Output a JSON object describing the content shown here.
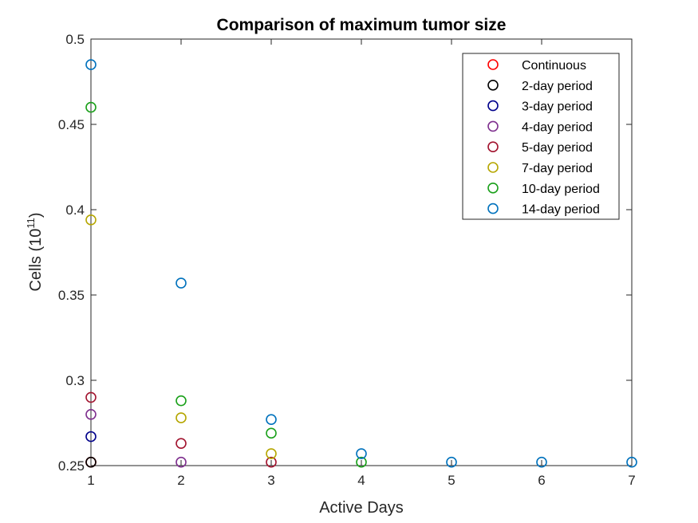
{
  "chart_data": {
    "type": "scatter",
    "title": "Comparison of maximum tumor size",
    "xlabel": "Active Days",
    "ylabel": {
      "base": "Cells (10",
      "superscript": "11",
      "suffix": ")"
    },
    "xlim": [
      1,
      7
    ],
    "ylim": [
      0.25,
      0.5
    ],
    "xticks": [
      "1",
      "2",
      "3",
      "4",
      "5",
      "6",
      "7"
    ],
    "yticks": [
      "0.25",
      "0.3",
      "0.35",
      "0.4",
      "0.45",
      "0.5"
    ],
    "grid": false,
    "legend_position": "top-right",
    "marker": "open-circle",
    "series": [
      {
        "name": "Continuous",
        "color": "#ff0000",
        "points": [
          [
            1,
            0.252
          ]
        ]
      },
      {
        "name": "2-day period",
        "color": "#000000",
        "points": [
          [
            1,
            0.252
          ]
        ]
      },
      {
        "name": "3-day period",
        "color": "#00008b",
        "points": [
          [
            1,
            0.267
          ]
        ]
      },
      {
        "name": "4-day period",
        "color": "#7e2f8e",
        "points": [
          [
            1,
            0.28
          ],
          [
            2,
            0.252
          ]
        ]
      },
      {
        "name": "5-day period",
        "color": "#a2142f",
        "points": [
          [
            1,
            0.29
          ],
          [
            2,
            0.263
          ],
          [
            3,
            0.252
          ]
        ]
      },
      {
        "name": "7-day period",
        "color": "#b5a600",
        "points": [
          [
            1,
            0.394
          ],
          [
            2,
            0.278
          ],
          [
            3,
            0.257
          ]
        ]
      },
      {
        "name": "10-day period",
        "color": "#1aa01a",
        "points": [
          [
            1,
            0.46
          ],
          [
            2,
            0.288
          ],
          [
            3,
            0.269
          ],
          [
            4,
            0.252
          ]
        ]
      },
      {
        "name": "14-day period",
        "color": "#0072bd",
        "points": [
          [
            1,
            0.485
          ],
          [
            2,
            0.357
          ],
          [
            3,
            0.277
          ],
          [
            4,
            0.257
          ],
          [
            5,
            0.252
          ],
          [
            6,
            0.252
          ],
          [
            7,
            0.252
          ]
        ]
      }
    ]
  }
}
